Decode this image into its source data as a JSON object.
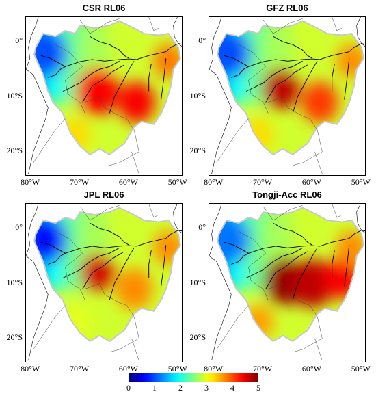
{
  "panels": [
    {
      "title": "CSR RL06"
    },
    {
      "title": "GFZ RL06"
    },
    {
      "title": "JPL RL06"
    },
    {
      "title": "Tongji-Acc RL06"
    }
  ],
  "lat_labels": [
    "0°",
    "10°S",
    "20°S"
  ],
  "lon_labels": [
    "80°W",
    "70°W",
    "60°W",
    "50°W"
  ],
  "colorbar": {
    "ticks": [
      "0",
      "1",
      "2",
      "3",
      "4",
      "5"
    ],
    "range": [
      0,
      5
    ],
    "colormap": "jet"
  },
  "colors": {
    "coast": "#000000",
    "boundary": "#c8c8c8"
  },
  "fields": [
    {
      "blobs": [
        [
          -66.5,
          -9,
          4.4,
          3.5
        ],
        [
          -58.5,
          -11,
          4.4,
          3.0
        ],
        [
          -52,
          -3.5,
          3.8,
          2.5
        ],
        [
          -71,
          -17,
          3.3,
          2.5
        ],
        [
          -77,
          -2,
          1.0,
          3.5
        ]
      ]
    },
    {
      "blobs": [
        [
          -66.5,
          -8.5,
          4.7,
          3.0
        ],
        [
          -58.5,
          -11,
          4.1,
          3.0
        ],
        [
          -52,
          -3.5,
          3.7,
          2.5
        ],
        [
          -71,
          -17,
          3.3,
          2.5
        ],
        [
          -77,
          -2,
          1.0,
          3.5
        ]
      ]
    },
    {
      "blobs": [
        [
          -66.5,
          -8,
          4.6,
          2.8
        ],
        [
          -59,
          -11,
          3.7,
          3.0
        ],
        [
          -52,
          -3.5,
          3.7,
          2.5
        ],
        [
          -71,
          -17,
          3.0,
          2.5
        ],
        [
          -77,
          -2,
          0.7,
          3.5
        ]
      ]
    },
    {
      "blobs": [
        [
          -65.5,
          -9.5,
          4.9,
          3.5
        ],
        [
          -60,
          -10,
          4.7,
          3.5
        ],
        [
          -54,
          -9,
          4.4,
          3.0
        ],
        [
          -52,
          -3.5,
          3.7,
          2.5
        ],
        [
          -71,
          -17,
          3.6,
          2.5
        ],
        [
          -77,
          -2,
          1.2,
          3.5
        ]
      ]
    }
  ]
}
